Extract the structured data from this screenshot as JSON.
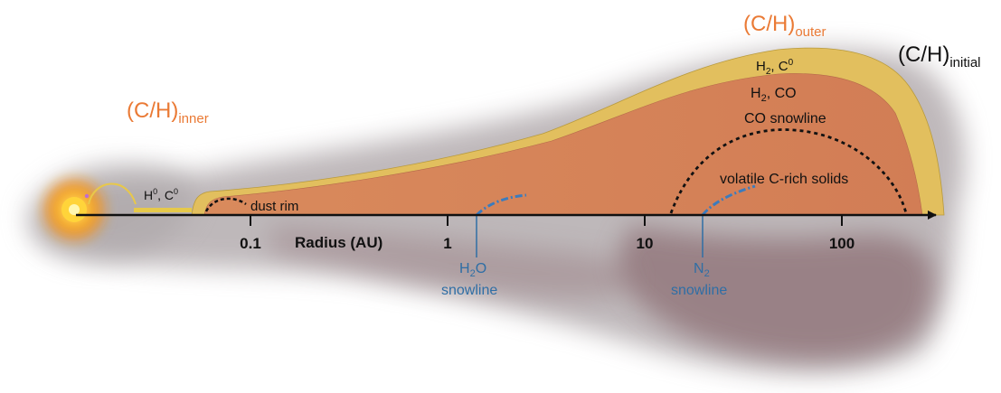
{
  "labels": {
    "ch_outer": {
      "main": "(C/H)",
      "sub": "outer"
    },
    "ch_initial": {
      "main": "(C/H)",
      "sub": "initial"
    },
    "ch_inner": {
      "main": "(C/H)",
      "sub": "inner"
    },
    "surface_layer": {
      "h": "H",
      "sub": "2",
      "rest": ", C",
      "sup": "0"
    },
    "mid_layer": {
      "h": "H",
      "sub": "2",
      "rest": ", CO"
    },
    "co_snowline": "CO snowline",
    "volatile_solids": "volatile C-rich solids",
    "inner_gas": {
      "h": "H",
      "sup1": "0",
      "rest": ", C",
      "sup2": "0"
    },
    "dust_rim": "dust rim",
    "axis_title": "Radius (AU)",
    "h2o_snowline": {
      "h": "H",
      "sub": "2",
      "o": "O",
      "line2": "snowline"
    },
    "n2_snowline": {
      "n": "N",
      "sub": "2",
      "line2": "snowline"
    }
  },
  "axis": {
    "quantity": "Radius",
    "unit": "AU",
    "scale": "log",
    "ticks": [
      {
        "value": 0.1,
        "label": "0.1"
      },
      {
        "value": 1,
        "label": "1"
      },
      {
        "value": 10,
        "label": "10"
      },
      {
        "value": 100,
        "label": "100"
      }
    ]
  },
  "colors": {
    "star_core": "#fff4a8",
    "star_glow": "#f7a21b",
    "disk_body": "#d7845c",
    "disk_surface": "#e3c060",
    "cloud": "#9a8a8e",
    "annotation_orange": "#ea7a35",
    "annotation_blue": "#2f6ea5",
    "axis": "#111111"
  }
}
